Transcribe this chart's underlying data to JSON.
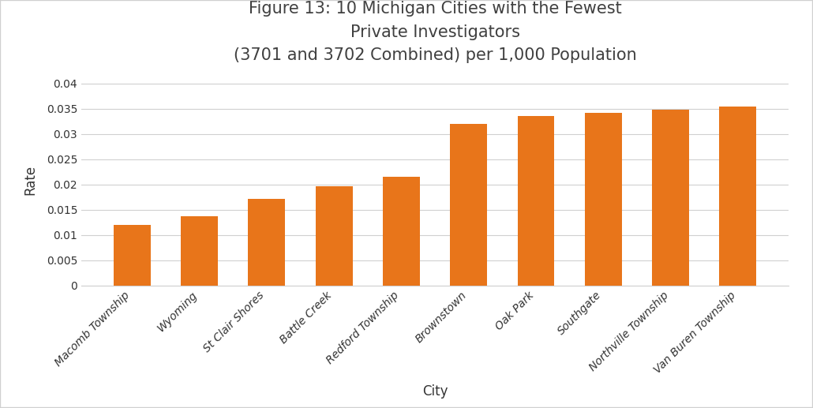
{
  "title": "Figure 13: 10 Michigan Cities with the Fewest\nPrivate Investigators\n(3701 and 3702 Combined) per 1,000 Population",
  "xlabel": "City",
  "ylabel": "Rate",
  "categories": [
    "Macomb Township",
    "Wyoming",
    "St Clair Shores",
    "Battle Creek",
    "Redford Township",
    "Brownstown",
    "Oak Park",
    "Southgate",
    "Northville Township",
    "Van Buren Township"
  ],
  "values": [
    0.012,
    0.0138,
    0.0172,
    0.0196,
    0.0215,
    0.032,
    0.0335,
    0.0342,
    0.0348,
    0.0355
  ],
  "bar_color": "#E8751A",
  "ylim": [
    0,
    0.042
  ],
  "yticks": [
    0,
    0.005,
    0.01,
    0.015,
    0.02,
    0.025,
    0.03,
    0.035,
    0.04
  ],
  "background_color": "#FFFFFF",
  "title_color": "#404040",
  "title_fontsize": 15,
  "axis_label_fontsize": 12,
  "tick_fontsize": 10,
  "bar_width": 0.55,
  "border_color": "#D0D0D0",
  "grid_color": "#D0D0D0"
}
